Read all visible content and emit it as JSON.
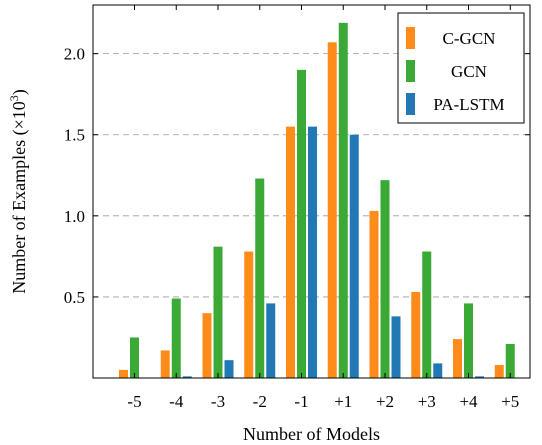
{
  "chart_data": {
    "type": "bar",
    "categories": [
      "-5",
      "-4",
      "-3",
      "-2",
      "-1",
      "+1",
      "+2",
      "+3",
      "+4",
      "+5"
    ],
    "series": [
      {
        "name": "C-GCN",
        "color": "#ff8c1a",
        "values": [
          0.05,
          0.17,
          0.4,
          0.78,
          1.55,
          2.07,
          1.03,
          0.53,
          0.24,
          0.08
        ]
      },
      {
        "name": "GCN",
        "color": "#3aa935",
        "values": [
          0.25,
          0.49,
          0.81,
          1.23,
          1.9,
          2.19,
          1.22,
          0.78,
          0.46,
          0.21
        ]
      },
      {
        "name": "PA-LSTM",
        "color": "#2278b5",
        "values": [
          0.0,
          0.01,
          0.11,
          0.46,
          1.55,
          1.5,
          0.38,
          0.09,
          0.01,
          0.0
        ]
      }
    ],
    "xlabel": "Number of Models",
    "ylabel": "Number of Examples (×10",
    "ylabel_exponent": "3",
    "ylabel_close": ")",
    "yticks": [
      "0.5",
      "1.0",
      "1.5",
      "2.0"
    ],
    "ytick_values": [
      0.5,
      1.0,
      1.5,
      2.0
    ],
    "ylim": [
      0,
      2.3
    ],
    "grid": "horizontal dashed",
    "legend_position": "top-right"
  }
}
